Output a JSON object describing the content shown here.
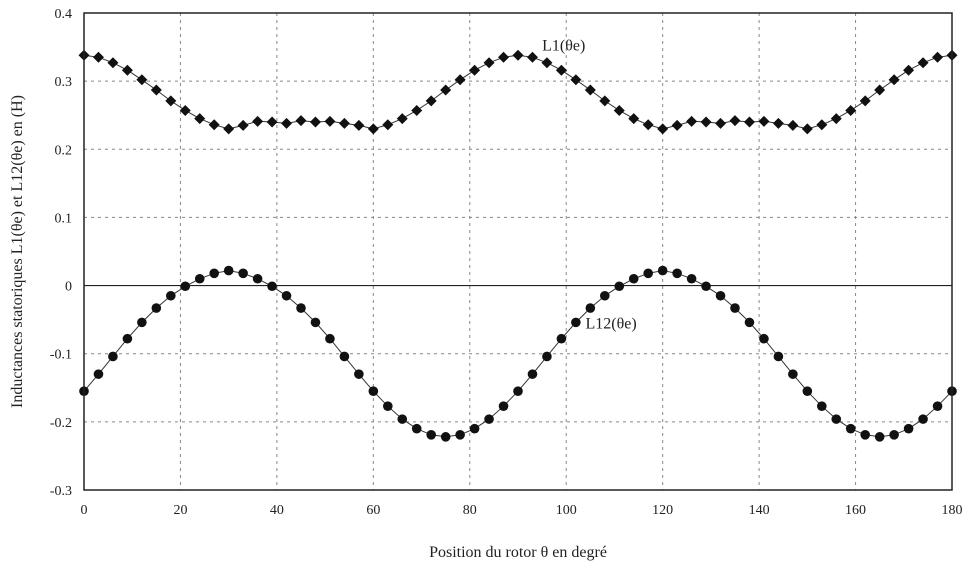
{
  "chart_data": {
    "type": "scatter",
    "xlabel": "Position du rotor θ  en  degré",
    "ylabel": "Inductances statoriques  L1(θe)  et L12(θe)  en  (H)",
    "xlim": [
      0,
      180
    ],
    "ylim": [
      -0.3,
      0.4
    ],
    "x_ticks": [
      "0",
      "20",
      "40",
      "60",
      "80",
      "100",
      "120",
      "140",
      "160",
      "180"
    ],
    "y_ticks": [
      "-0.3",
      "-0.2",
      "-0.1",
      "0",
      "0.1",
      "0.2",
      "0.3",
      "0.4"
    ],
    "grid": true,
    "colors": {
      "series": "#111111",
      "grid": "#888888",
      "axis": "#222222"
    },
    "series": [
      {
        "name": "L1(θe)",
        "markers": "diamond",
        "x": [
          0,
          3,
          6,
          9,
          12,
          15,
          18,
          21,
          24,
          27,
          30,
          33,
          36,
          39,
          42,
          45,
          48,
          51,
          54,
          57,
          60,
          63,
          66,
          69,
          72,
          75,
          78,
          81,
          84,
          87,
          90,
          93,
          96,
          99,
          102,
          105,
          108,
          111,
          114,
          117,
          120,
          123,
          126,
          129,
          132,
          135,
          138,
          141,
          144,
          147,
          150,
          153,
          156,
          159,
          162,
          165,
          168,
          171,
          174,
          177,
          180
        ],
        "y": [
          0.338,
          0.335,
          0.327,
          0.316,
          0.302,
          0.287,
          0.271,
          0.257,
          0.245,
          0.236,
          0.23,
          0.235,
          0.241,
          0.24,
          0.238,
          0.242,
          0.24,
          0.241,
          0.238,
          0.235,
          0.23,
          0.236,
          0.245,
          0.257,
          0.271,
          0.287,
          0.302,
          0.316,
          0.327,
          0.335,
          0.338,
          0.335,
          0.327,
          0.316,
          0.302,
          0.287,
          0.271,
          0.257,
          0.245,
          0.236,
          0.23,
          0.235,
          0.241,
          0.24,
          0.238,
          0.242,
          0.24,
          0.241,
          0.238,
          0.235,
          0.23,
          0.236,
          0.245,
          0.257,
          0.271,
          0.287,
          0.302,
          0.316,
          0.327,
          0.335,
          0.338
        ]
      },
      {
        "name": "L12(θe)",
        "markers": "circle",
        "x": [
          0,
          3,
          6,
          9,
          12,
          15,
          18,
          21,
          24,
          27,
          30,
          33,
          36,
          39,
          42,
          45,
          48,
          51,
          54,
          57,
          60,
          63,
          66,
          69,
          72,
          75,
          78,
          81,
          84,
          87,
          90,
          93,
          96,
          99,
          102,
          105,
          108,
          111,
          114,
          117,
          120,
          123,
          126,
          129,
          132,
          135,
          138,
          141,
          144,
          147,
          150,
          153,
          156,
          159,
          162,
          165,
          168,
          171,
          174,
          177,
          180
        ],
        "y": [
          -0.155,
          -0.13,
          -0.104,
          -0.078,
          -0.054,
          -0.033,
          -0.015,
          -0.001,
          0.01,
          0.018,
          0.022,
          0.018,
          0.01,
          -0.001,
          -0.015,
          -0.033,
          -0.054,
          -0.078,
          -0.104,
          -0.13,
          -0.155,
          -0.177,
          -0.196,
          -0.21,
          -0.219,
          -0.222,
          -0.219,
          -0.21,
          -0.196,
          -0.177,
          -0.155,
          -0.13,
          -0.104,
          -0.078,
          -0.054,
          -0.033,
          -0.015,
          -0.001,
          0.01,
          0.018,
          0.022,
          0.018,
          0.01,
          -0.001,
          -0.015,
          -0.033,
          -0.054,
          -0.078,
          -0.104,
          -0.13,
          -0.155,
          -0.177,
          -0.196,
          -0.21,
          -0.219,
          -0.222,
          -0.219,
          -0.21,
          -0.196,
          -0.177,
          -0.155
        ]
      }
    ]
  }
}
